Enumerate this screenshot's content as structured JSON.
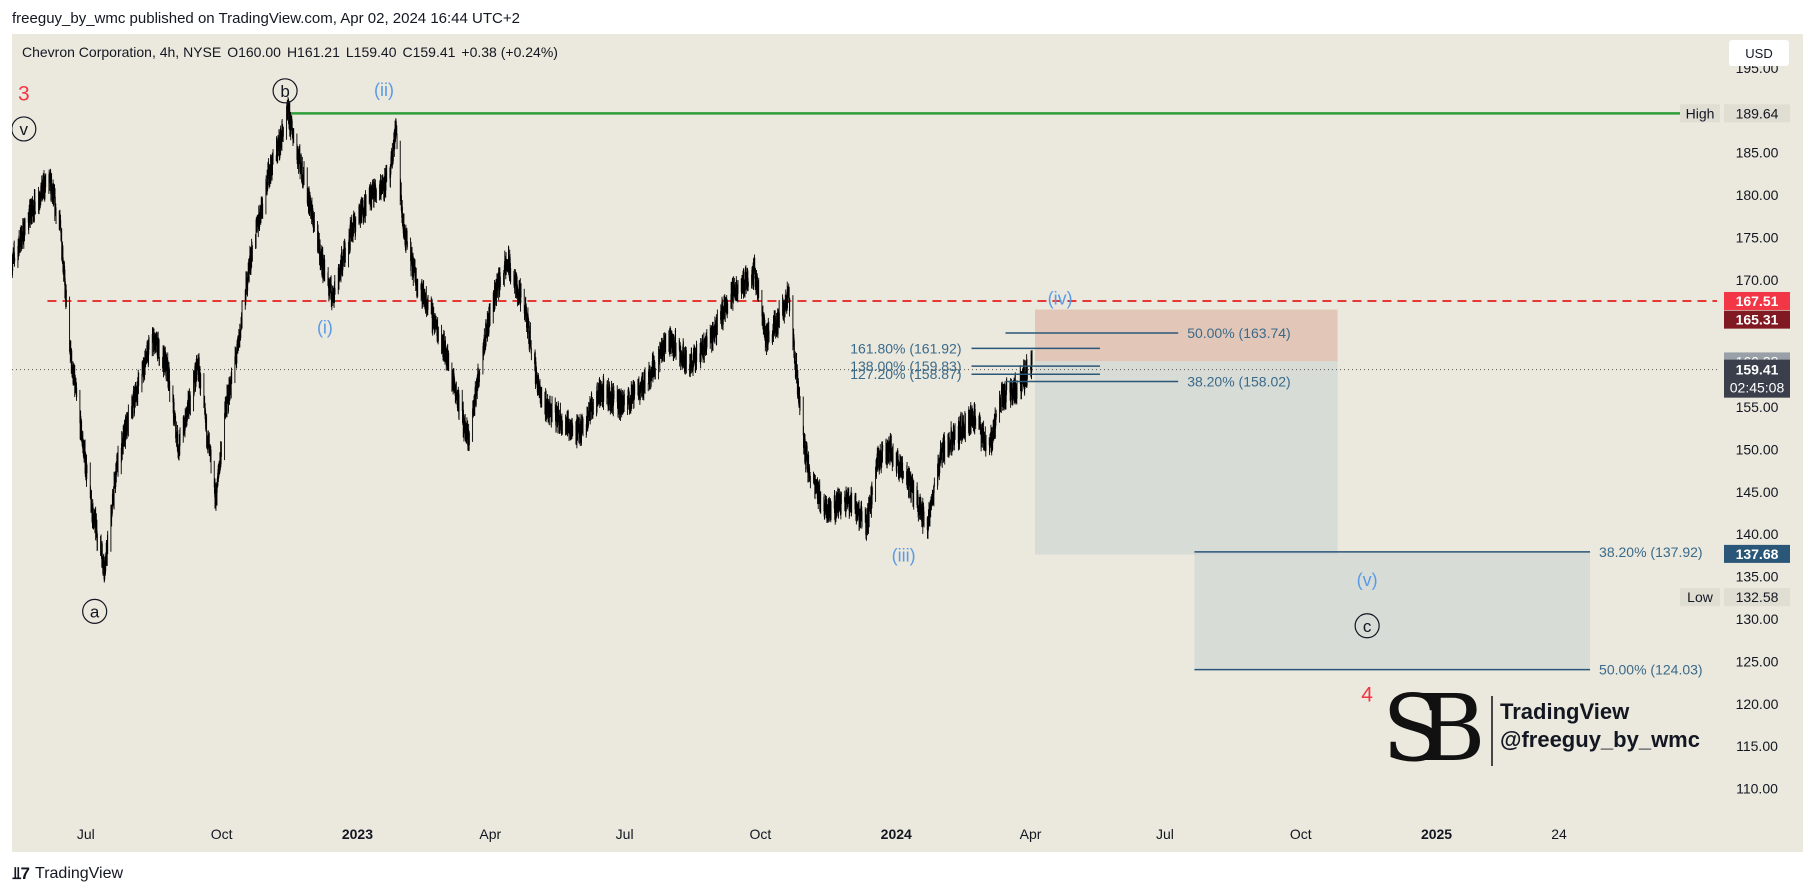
{
  "header": {
    "published": "freeguy_by_wmc published on TradingView.com, Apr 02, 2024 16:44 UTC+2"
  },
  "legend": {
    "symbol": "Chevron Corporation, 4h, NYSE",
    "open": "O160.00",
    "high": "H161.21",
    "low": "L159.40",
    "close": "C159.41",
    "change": "+0.38 (+0.24%)"
  },
  "currency_button": "USD",
  "footer": {
    "brand": "TradingView",
    "icon": "tradingview-logo-icon"
  },
  "watermark": {
    "line1": "TradingView",
    "line2": "@freeguy_by_wmc",
    "logo": "sb-monogram-logo"
  },
  "colors": {
    "background": "#ebe8dd",
    "candles": "#000000",
    "high_line": "#2e9e3a",
    "resistance_line": "#e53935",
    "wave_blue": "#5b9be6",
    "fib_line": "#2a5677",
    "fib_text": "#3a6a8a",
    "red_label": "#f23645"
  },
  "chart_data": {
    "type": "candlestick",
    "symbol": "CVX",
    "timeframe": "4h",
    "ylim": [
      107,
      199
    ],
    "y_ticks": [
      110,
      115,
      120,
      125,
      130,
      135,
      140,
      145,
      150,
      155,
      160,
      165,
      170,
      175,
      180,
      185,
      190,
      195
    ],
    "x_ticks": [
      {
        "label": "Jul",
        "date": "2022-07-01",
        "bold": false
      },
      {
        "label": "Oct",
        "date": "2022-10-01",
        "bold": false
      },
      {
        "label": "2023",
        "date": "2023-01-01",
        "bold": true
      },
      {
        "label": "Apr",
        "date": "2023-04-01",
        "bold": false
      },
      {
        "label": "Jul",
        "date": "2023-07-01",
        "bold": false
      },
      {
        "label": "Oct",
        "date": "2023-10-01",
        "bold": false
      },
      {
        "label": "2024",
        "date": "2024-01-01",
        "bold": true
      },
      {
        "label": "Apr",
        "date": "2024-04-01",
        "bold": false
      },
      {
        "label": "Jul",
        "date": "2024-07-01",
        "bold": false
      },
      {
        "label": "Oct",
        "date": "2024-10-01",
        "bold": false
      },
      {
        "label": "2025",
        "date": "2025-01-01",
        "bold": true
      },
      {
        "label": "24",
        "date": "2025-03-25",
        "bold": false
      }
    ],
    "xlim": [
      "2022-05-12",
      "2025-07-10"
    ],
    "price_path": [
      [
        "2022-05-12",
        172
      ],
      [
        "2022-05-25",
        178
      ],
      [
        "2022-06-06",
        182
      ],
      [
        "2022-06-14",
        176
      ],
      [
        "2022-06-20",
        162
      ],
      [
        "2022-06-28",
        152
      ],
      [
        "2022-07-05",
        143
      ],
      [
        "2022-07-14",
        136
      ],
      [
        "2022-07-22",
        148
      ],
      [
        "2022-08-01",
        155
      ],
      [
        "2022-08-15",
        163
      ],
      [
        "2022-08-25",
        160
      ],
      [
        "2022-09-02",
        150
      ],
      [
        "2022-09-15",
        160
      ],
      [
        "2022-09-27",
        144
      ],
      [
        "2022-10-03",
        154
      ],
      [
        "2022-10-12",
        162
      ],
      [
        "2022-10-20",
        172
      ],
      [
        "2022-11-01",
        182
      ],
      [
        "2022-11-09",
        186
      ],
      [
        "2022-11-15",
        189.6
      ],
      [
        "2022-11-23",
        184
      ],
      [
        "2022-12-01",
        178
      ],
      [
        "2022-12-08",
        172
      ],
      [
        "2022-12-15",
        168
      ],
      [
        "2022-12-28",
        176
      ],
      [
        "2023-01-10",
        180
      ],
      [
        "2023-01-23",
        182
      ],
      [
        "2023-01-27",
        188
      ],
      [
        "2023-02-01",
        176
      ],
      [
        "2023-02-10",
        170
      ],
      [
        "2023-02-20",
        166
      ],
      [
        "2023-03-01",
        162
      ],
      [
        "2023-03-10",
        156
      ],
      [
        "2023-03-17",
        151
      ],
      [
        "2023-03-28",
        163
      ],
      [
        "2023-04-05",
        169
      ],
      [
        "2023-04-13",
        172
      ],
      [
        "2023-04-25",
        166
      ],
      [
        "2023-05-05",
        156
      ],
      [
        "2023-05-15",
        154
      ],
      [
        "2023-05-31",
        152
      ],
      [
        "2023-06-15",
        157
      ],
      [
        "2023-06-30",
        155
      ],
      [
        "2023-07-15",
        158
      ],
      [
        "2023-07-31",
        163
      ],
      [
        "2023-08-15",
        160
      ],
      [
        "2023-08-31",
        164
      ],
      [
        "2023-09-10",
        168
      ],
      [
        "2023-09-27",
        171
      ],
      [
        "2023-10-05",
        163
      ],
      [
        "2023-10-15",
        166
      ],
      [
        "2023-10-20",
        168
      ],
      [
        "2023-10-26",
        158
      ],
      [
        "2023-10-31",
        150
      ],
      [
        "2023-11-05",
        146
      ],
      [
        "2023-11-15",
        143
      ],
      [
        "2023-11-30",
        144
      ],
      [
        "2023-12-12",
        141
      ],
      [
        "2023-12-20",
        149
      ],
      [
        "2023-12-28",
        150
      ],
      [
        "2024-01-10",
        146
      ],
      [
        "2024-01-22",
        141
      ],
      [
        "2024-02-01",
        150
      ],
      [
        "2024-02-12",
        152
      ],
      [
        "2024-02-22",
        154
      ],
      [
        "2024-03-04",
        150
      ],
      [
        "2024-03-12",
        156
      ],
      [
        "2024-03-22",
        157
      ],
      [
        "2024-04-02",
        160
      ]
    ],
    "last_price": 159.41,
    "countdown": "02:45:08",
    "price_labels": [
      {
        "value": "189.64",
        "price": 189.64,
        "tag": "High",
        "kind": "high"
      },
      {
        "value": "167.51",
        "price": 167.51,
        "kind": "red"
      },
      {
        "value": "165.31",
        "price": 165.31,
        "kind": "darkred"
      },
      {
        "value": "160.38",
        "price": 160.38,
        "kind": "hidden"
      },
      {
        "value": "159.41",
        "price": 159.41,
        "kind": "current"
      },
      {
        "value": "137.68",
        "price": 137.68,
        "kind": "blue"
      },
      {
        "value": "132.58",
        "price": 132.58,
        "tag": "Low",
        "kind": "low"
      }
    ],
    "lines": [
      {
        "name": "high-line",
        "price": 189.64,
        "from": "2022-11-15",
        "to": "2025-06-25",
        "style": "solid",
        "color": "#2e9e3a"
      },
      {
        "name": "resistance-line",
        "price": 167.51,
        "from": "2022-06-05",
        "to": "2025-07-10",
        "style": "dashed",
        "color": "#e53935"
      },
      {
        "name": "current-price-line",
        "price": 159.41,
        "from": "2022-05-12",
        "to": "2025-07-10",
        "style": "dotted",
        "color": "#555555"
      }
    ],
    "zones": [
      {
        "name": "target-zone-upper",
        "from": "2024-04-04",
        "to": "2024-10-26",
        "top": 166.5,
        "bottom": 160.4,
        "color": "rgba(214,160,140,0.45)"
      },
      {
        "name": "target-zone-lower",
        "from": "2024-04-04",
        "to": "2024-10-26",
        "top": 160.4,
        "bottom": 137.6,
        "color": "rgba(200,210,210,0.55)"
      },
      {
        "name": "wave-c-zone",
        "from": "2024-07-21",
        "to": "2025-04-15",
        "top": 137.92,
        "bottom": 124.03,
        "color": "rgba(200,210,210,0.55)"
      }
    ],
    "fib_levels": [
      {
        "label": "161.80% (161.92)",
        "price": 161.92,
        "from": "2024-02-21",
        "to": "2024-05-18",
        "label_side": "left"
      },
      {
        "label": "138.00% (159.83)",
        "price": 159.83,
        "from": "2024-02-21",
        "to": "2024-05-18",
        "label_side": "left"
      },
      {
        "label": "127.20% (158.87)",
        "price": 158.87,
        "from": "2024-02-21",
        "to": "2024-05-18",
        "label_side": "left"
      },
      {
        "label": "50.00% (163.74)",
        "price": 163.74,
        "from": "2024-03-15",
        "to": "2024-07-10",
        "label_side": "right"
      },
      {
        "label": "38.20% (158.02)",
        "price": 158.02,
        "from": "2024-03-15",
        "to": "2024-07-10",
        "label_side": "right"
      },
      {
        "label": "38.20% (137.92)",
        "price": 137.92,
        "from": "2024-07-21",
        "to": "2025-04-15",
        "label_side": "right"
      },
      {
        "label": "50.00% (124.03)",
        "price": 124.03,
        "from": "2024-07-21",
        "to": "2025-04-15",
        "label_side": "right"
      }
    ],
    "wave_labels": [
      {
        "text": "3",
        "date": "2022-05-20",
        "price": 192,
        "style": "red"
      },
      {
        "text": "v",
        "date": "2022-05-20",
        "price": 187.8,
        "style": "circle"
      },
      {
        "text": "b",
        "date": "2022-11-13",
        "price": 192.3,
        "style": "circle"
      },
      {
        "text": "(ii)",
        "date": "2023-01-19",
        "price": 192.4,
        "style": "blue"
      },
      {
        "text": "(i)",
        "date": "2022-12-10",
        "price": 164.4,
        "style": "blue"
      },
      {
        "text": "a",
        "date": "2022-07-07",
        "price": 130.9,
        "style": "circle"
      },
      {
        "text": "(iii)",
        "date": "2024-01-06",
        "price": 137.5,
        "style": "blue"
      },
      {
        "text": "(iv)",
        "date": "2024-04-21",
        "price": 167.8,
        "style": "blue"
      },
      {
        "text": "(v)",
        "date": "2024-11-15",
        "price": 134.6,
        "style": "blue"
      },
      {
        "text": "c",
        "date": "2024-11-15",
        "price": 129.2,
        "style": "circle"
      },
      {
        "text": "4",
        "date": "2024-11-15",
        "price": 121.1,
        "style": "red"
      }
    ]
  }
}
